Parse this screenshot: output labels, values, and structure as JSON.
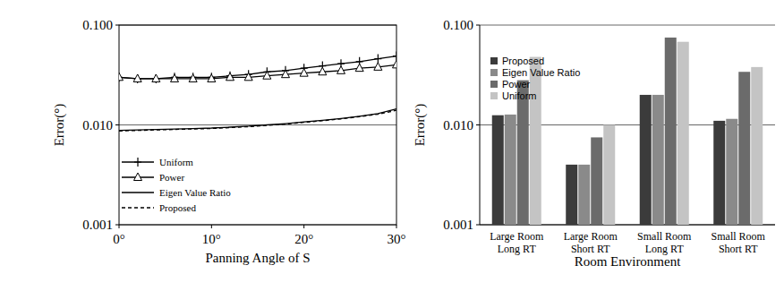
{
  "chart_data": [
    {
      "type": "line",
      "x_label": "Panning Angle of S",
      "y_label": "Error(°)",
      "x": [
        0,
        2,
        4,
        6,
        8,
        10,
        12,
        14,
        16,
        18,
        20,
        22,
        24,
        26,
        28,
        30
      ],
      "series": [
        {
          "name": "Uniform",
          "color": "#000000",
          "marker": "plus",
          "line_style": "solid",
          "values": [
            0.03,
            0.029,
            0.029,
            0.03,
            0.03,
            0.03,
            0.031,
            0.032,
            0.034,
            0.035,
            0.037,
            0.039,
            0.041,
            0.043,
            0.046,
            0.049
          ]
        },
        {
          "name": "Power",
          "color": "#000000",
          "marker": "triangle",
          "line_style": "solid",
          "values": [
            0.03,
            0.029,
            0.029,
            0.029,
            0.029,
            0.029,
            0.03,
            0.03,
            0.031,
            0.032,
            0.033,
            0.034,
            0.035,
            0.037,
            0.038,
            0.04
          ]
        },
        {
          "name": "Eigen Value Ratio",
          "color": "#000000",
          "marker": "none",
          "line_style": "solid",
          "values": [
            0.0088,
            0.0089,
            0.009,
            0.0091,
            0.0092,
            0.0093,
            0.0095,
            0.0097,
            0.01,
            0.0103,
            0.0107,
            0.0111,
            0.0116,
            0.0122,
            0.013,
            0.0145
          ]
        },
        {
          "name": "Proposed",
          "color": "#000000",
          "marker": "none",
          "line_style": "dashed",
          "values": [
            0.0087,
            0.0088,
            0.0089,
            0.009,
            0.0091,
            0.0092,
            0.0094,
            0.0096,
            0.0099,
            0.0102,
            0.0106,
            0.011,
            0.0115,
            0.0121,
            0.0128,
            0.014
          ]
        }
      ],
      "xlim": [
        0,
        30
      ],
      "xticks": [
        {
          "value": 0,
          "label": "0°"
        },
        {
          "value": 10,
          "label": "10°"
        },
        {
          "value": 20,
          "label": "20°"
        },
        {
          "value": 30,
          "label": "30°"
        }
      ],
      "ylim": [
        0.001,
        0.1
      ],
      "yticks": [
        0.001,
        {
          "value": 0.01,
          "label": "0.010"
        },
        {
          "value": 0.1,
          "label": "0.100"
        }
      ],
      "log": "y",
      "grid": true,
      "legend": "lower left"
    },
    {
      "type": "bar",
      "x_label": "Room Environment",
      "y_label": "Error(°)",
      "categories": [
        "Large Room\nLong RT",
        "Large Room\nShort RT",
        "Small Room\nLong RT",
        "Small Room\nShort RT"
      ],
      "series": [
        {
          "name": "Proposed",
          "color": "#3b3b3b",
          "values": [
            0.0125,
            0.004,
            0.02,
            0.011
          ]
        },
        {
          "name": "Eigen Value Ratio",
          "color": "#8a8a8a",
          "values": [
            0.0127,
            0.004,
            0.02,
            0.0115
          ]
        },
        {
          "name": "Power",
          "color": "#6b6b6b",
          "values": [
            0.028,
            0.0075,
            0.075,
            0.034
          ]
        },
        {
          "name": "Uniform",
          "color": "#c4c4c4",
          "values": [
            0.048,
            0.01,
            0.068,
            0.038
          ]
        }
      ],
      "ylim": [
        0.001,
        0.1
      ],
      "yticks": [
        0.001,
        {
          "value": 0.01,
          "label": "0.010"
        },
        {
          "value": 0.1,
          "label": "0.100"
        }
      ],
      "log": "y",
      "grid": true,
      "legend": "upper left"
    }
  ]
}
